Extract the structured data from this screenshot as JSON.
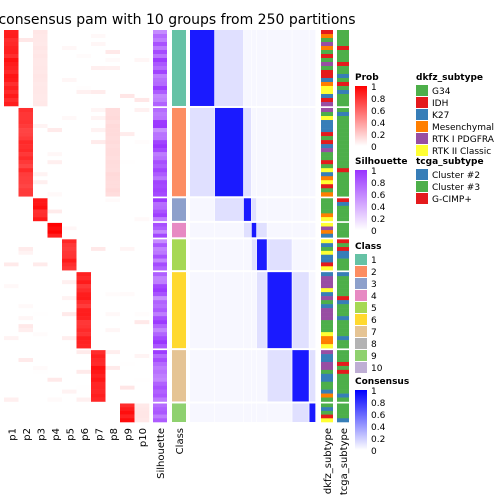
{
  "chart_data": {
    "type": "heatmap",
    "title": "consensus pam with 10 groups from 250 partitions",
    "membership_columns": [
      "p1",
      "p2",
      "p3",
      "p4",
      "p5",
      "p6",
      "p7",
      "p8",
      "p9",
      "p10"
    ],
    "annotation_labels": [
      "Silhouette",
      "Class",
      "dkfz_subtype",
      "tcga_subtype"
    ],
    "class_blocks": [
      {
        "class": "1",
        "samples": 19,
        "color": "#66C2A5",
        "prob": {
          "p1": 0.95,
          "p3": 0.1
        }
      },
      {
        "class": "2",
        "samples": 22,
        "color": "#FC8D62",
        "prob": {
          "p2": 0.85,
          "p8": 0.15
        }
      },
      {
        "class": "3",
        "samples": 6,
        "color": "#8DA0CB",
        "prob": {
          "p3": 0.95
        }
      },
      {
        "class": "4",
        "samples": 4,
        "color": "#E78AC3",
        "prob": {
          "p4": 1.0
        }
      },
      {
        "class": "5",
        "samples": 8,
        "color": "#A6D854",
        "prob": {
          "p5": 0.9
        }
      },
      {
        "class": "6",
        "samples": 19,
        "color": "#FFD92F",
        "prob": {
          "p6": 0.9
        }
      },
      {
        "class": "7",
        "samples": 13,
        "color": "#E5C494",
        "prob": {
          "p7": 0.95
        }
      },
      {
        "class": "9",
        "samples": 5,
        "color": "#8FD16F",
        "prob": {
          "p9": 0.95,
          "p10": 0.1
        }
      }
    ],
    "legends": {
      "prob": {
        "title": "Prob",
        "ticks": [
          "1",
          "0.8",
          "0.6",
          "0.4",
          "0.2",
          "0"
        ],
        "colors": [
          "#ffffff",
          "#ff0000"
        ]
      },
      "silhouette": {
        "title": "Silhouette",
        "ticks": [
          "1",
          "0.8",
          "0.6",
          "0.4",
          "0.2",
          "0"
        ],
        "colors": [
          "#ffffff",
          "#9933ff"
        ]
      },
      "consensus": {
        "title": "Consensus",
        "ticks": [
          "1",
          "0.8",
          "0.6",
          "0.4",
          "0.2",
          "0"
        ],
        "colors": [
          "#ffffff",
          "#0000ff"
        ]
      },
      "class": {
        "title": "Class",
        "items": [
          {
            "label": "1",
            "color": "#66C2A5"
          },
          {
            "label": "2",
            "color": "#FC8D62"
          },
          {
            "label": "3",
            "color": "#8DA0CB"
          },
          {
            "label": "4",
            "color": "#E78AC3"
          },
          {
            "label": "5",
            "color": "#A6D854"
          },
          {
            "label": "6",
            "color": "#FFD92F"
          },
          {
            "label": "7",
            "color": "#E5C494"
          },
          {
            "label": "8",
            "color": "#B3B3B3"
          },
          {
            "label": "9",
            "color": "#8FD16F"
          },
          {
            "label": "10",
            "color": "#BEAED4"
          }
        ]
      },
      "dkfz_subtype": {
        "title": "dkfz_subtype",
        "items": [
          {
            "label": "G34",
            "color": "#4DAF4A"
          },
          {
            "label": "IDH",
            "color": "#E41A1C"
          },
          {
            "label": "K27",
            "color": "#377EB8"
          },
          {
            "label": "Mesenchymal",
            "color": "#FF7F00"
          },
          {
            "label": "RTK I PDGFRA",
            "color": "#984EA3"
          },
          {
            "label": "RTK II Classic",
            "color": "#FFFF33"
          }
        ]
      },
      "tcga_subtype": {
        "title": "tcga_subtype",
        "items": [
          {
            "label": "Cluster #2",
            "color": "#377EB8"
          },
          {
            "label": "Cluster #3",
            "color": "#4DAF4A"
          },
          {
            "label": "G-CIMP+",
            "color": "#E41A1C"
          }
        ]
      }
    }
  }
}
